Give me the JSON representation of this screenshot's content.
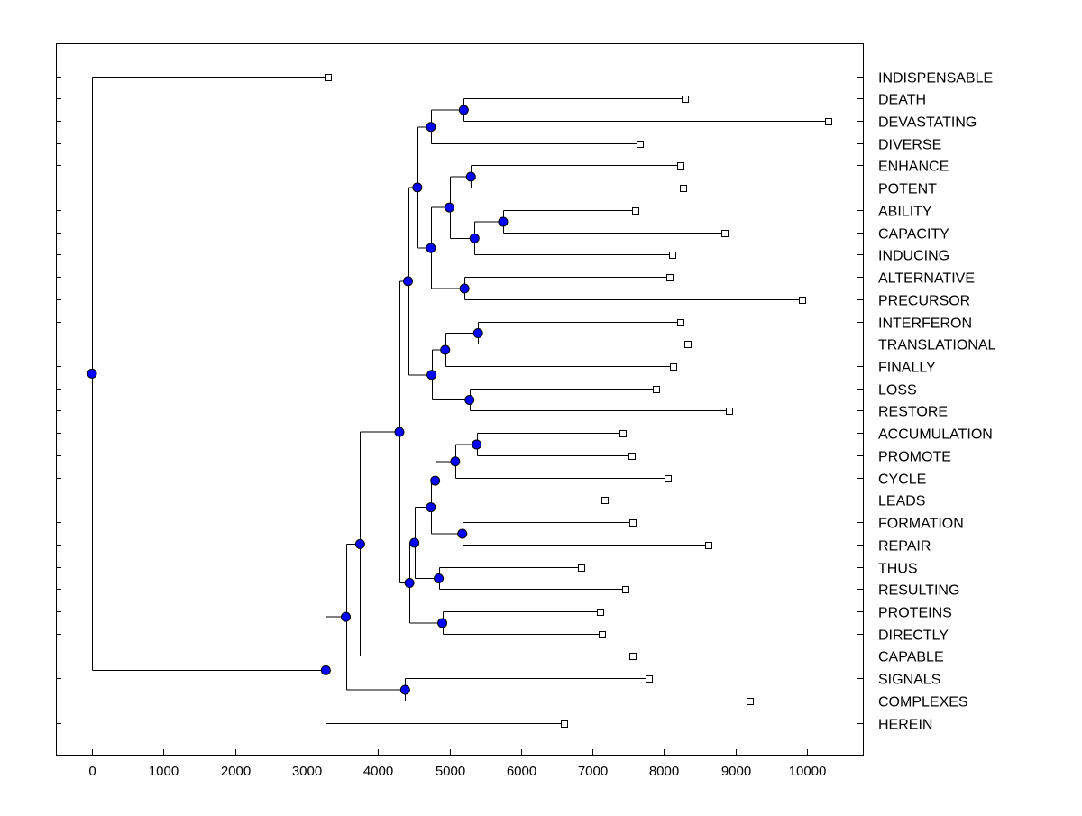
{
  "chart_data": {
    "type": "dendrogram",
    "title": "",
    "xlabel": "",
    "ylabel": "",
    "xlim": [
      -500,
      10800
    ],
    "x_ticks": [
      0,
      1000,
      2000,
      3000,
      4000,
      5000,
      6000,
      7000,
      8000,
      9000,
      10000
    ],
    "x_tick_labels": [
      "0",
      "1000",
      "2000",
      "3000",
      "4000",
      "5000",
      "6000",
      "7000",
      "8000",
      "9000",
      "10000"
    ],
    "leaf_label_position": "right",
    "colors": {
      "node": "#0000ff",
      "leaf": "#ffffff",
      "line": "#000000"
    },
    "leaves": [
      {
        "label": "INDISPENSABLE",
        "value": 3300
      },
      {
        "label": "DEATH",
        "value": 8300
      },
      {
        "label": "DEVASTATING",
        "value": 10300
      },
      {
        "label": "DIVERSE",
        "value": 7670
      },
      {
        "label": "ENHANCE",
        "value": 8230
      },
      {
        "label": "POTENT",
        "value": 8270
      },
      {
        "label": "ABILITY",
        "value": 7600
      },
      {
        "label": "CAPACITY",
        "value": 8850
      },
      {
        "label": "INDUCING",
        "value": 8120
      },
      {
        "label": "ALTERNATIVE",
        "value": 8080
      },
      {
        "label": "PRECURSOR",
        "value": 9940
      },
      {
        "label": "INTERFERON",
        "value": 8230
      },
      {
        "label": "TRANSLATIONAL",
        "value": 8330
      },
      {
        "label": "FINALLY",
        "value": 8130
      },
      {
        "label": "LOSS",
        "value": 7890
      },
      {
        "label": "RESTORE",
        "value": 8910
      },
      {
        "label": "ACCUMULATION",
        "value": 7430
      },
      {
        "label": "PROMOTE",
        "value": 7550
      },
      {
        "label": "CYCLE",
        "value": 8060
      },
      {
        "label": "LEADS",
        "value": 7170
      },
      {
        "label": "FORMATION",
        "value": 7570
      },
      {
        "label": "REPAIR",
        "value": 8620
      },
      {
        "label": "THUS",
        "value": 6850
      },
      {
        "label": "RESULTING",
        "value": 7460
      },
      {
        "label": "PROTEINS",
        "value": 7110
      },
      {
        "label": "DIRECTLY",
        "value": 7140
      },
      {
        "label": "CAPABLE",
        "value": 7560
      },
      {
        "label": "SIGNALS",
        "value": 7790
      },
      {
        "label": "COMPLEXES",
        "value": 9200
      },
      {
        "label": "HEREIN",
        "value": 6610
      }
    ],
    "nodes": {
      "root": {
        "value": 0,
        "children": [
          "INDISPENSABLE",
          "n28"
        ]
      },
      "n28": {
        "value": 3270,
        "children": [
          "n27",
          "HEREIN"
        ]
      },
      "n27": {
        "value": 3550,
        "children": [
          "n25",
          "n26"
        ]
      },
      "n26": {
        "value": 4380,
        "children": [
          "SIGNALS",
          "COMPLEXES"
        ]
      },
      "n25": {
        "value": 3750,
        "children": [
          "n24",
          "CAPABLE"
        ]
      },
      "n24": {
        "value": 4300,
        "children": [
          "n14",
          "n23"
        ]
      },
      "n14": {
        "value": 4420,
        "children": [
          "n9",
          "n13"
        ]
      },
      "n9": {
        "value": 4550,
        "children": [
          "n2",
          "n8"
        ]
      },
      "n2": {
        "value": 4740,
        "children": [
          "n1",
          "DIVERSE"
        ]
      },
      "n1": {
        "value": 5200,
        "children": [
          "DEATH",
          "DEVASTATING"
        ]
      },
      "n8": {
        "value": 4740,
        "children": [
          "n6",
          "n7"
        ]
      },
      "n6": {
        "value": 5000,
        "children": [
          "n3",
          "n5"
        ]
      },
      "n3": {
        "value": 5300,
        "children": [
          "ENHANCE",
          "POTENT"
        ]
      },
      "n5": {
        "value": 5350,
        "children": [
          "n4",
          "INDUCING"
        ]
      },
      "n4": {
        "value": 5750,
        "children": [
          "ABILITY",
          "CAPACITY"
        ]
      },
      "n7": {
        "value": 5210,
        "children": [
          "ALTERNATIVE",
          "PRECURSOR"
        ]
      },
      "n13": {
        "value": 4750,
        "children": [
          "n11",
          "n12"
        ]
      },
      "n11": {
        "value": 4940,
        "children": [
          "n10",
          "FINALLY"
        ]
      },
      "n10": {
        "value": 5400,
        "children": [
          "INTERFERON",
          "TRANSLATIONAL"
        ]
      },
      "n12": {
        "value": 5280,
        "children": [
          "LOSS",
          "RESTORE"
        ]
      },
      "n23": {
        "value": 4440,
        "children": [
          "n20",
          "n22"
        ]
      },
      "n20": {
        "value": 4510,
        "children": [
          "n18",
          "n21"
        ]
      },
      "n18": {
        "value": 4740,
        "children": [
          "n17",
          "n19"
        ]
      },
      "n17": {
        "value": 4800,
        "children": [
          "n16",
          "LEADS"
        ]
      },
      "n16": {
        "value": 5080,
        "children": [
          "n15",
          "CYCLE"
        ]
      },
      "n15": {
        "value": 5380,
        "children": [
          "ACCUMULATION",
          "PROMOTE"
        ]
      },
      "n19": {
        "value": 5180,
        "children": [
          "FORMATION",
          "REPAIR"
        ]
      },
      "n21": {
        "value": 4850,
        "children": [
          "THUS",
          "RESULTING"
        ]
      },
      "n22": {
        "value": 4900,
        "children": [
          "PROTEINS",
          "DIRECTLY"
        ]
      }
    }
  }
}
